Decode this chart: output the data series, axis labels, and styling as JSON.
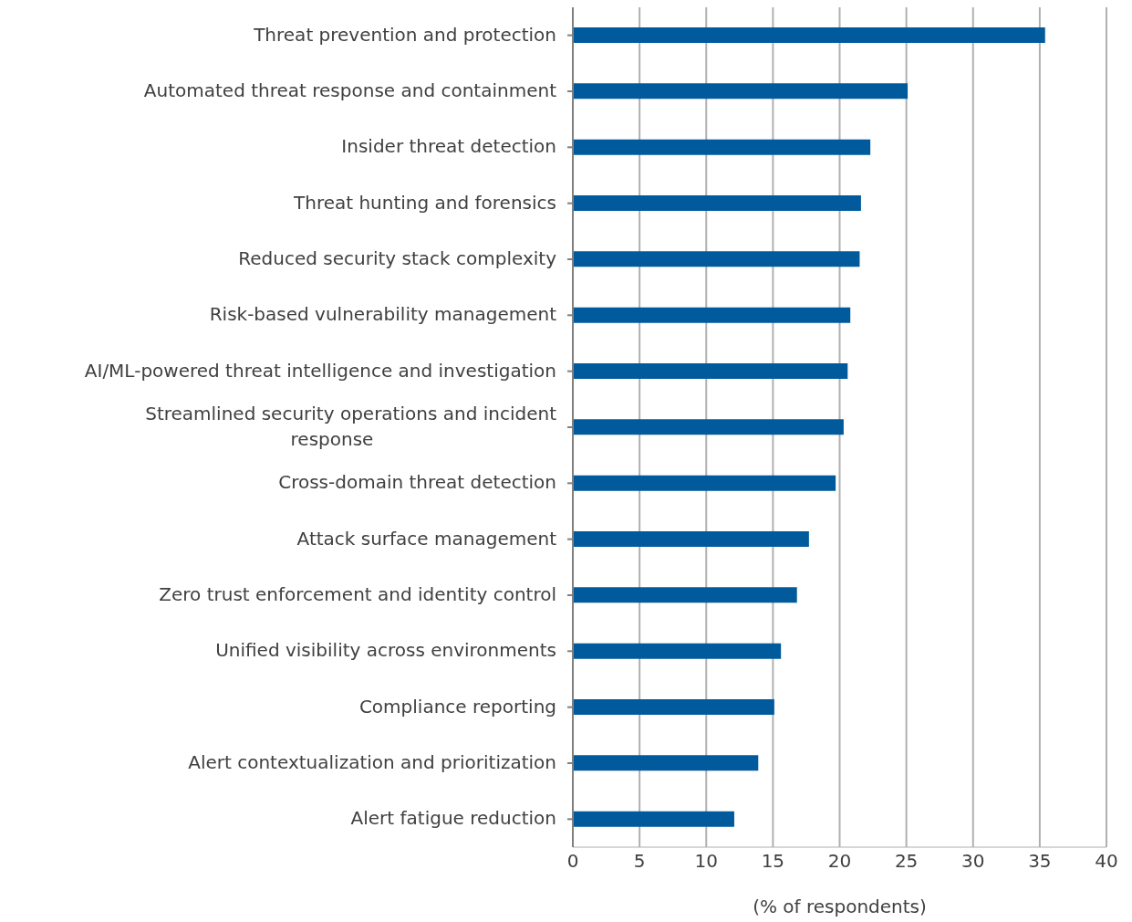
{
  "chart_data": {
    "type": "bar",
    "orientation": "horizontal",
    "xlabel": "(% of respondents)",
    "categories": [
      "Threat prevention and protection",
      "Automated threat response and containment",
      "Insider threat detection",
      "Threat hunting and forensics",
      "Reduced security stack complexity",
      "Risk-based vulnerability management",
      "AI/ML-powered threat intelligence and investigation",
      "Streamlined security operations and incident response",
      "Cross-domain threat detection",
      "Attack surface management",
      "Zero trust enforcement and identity control",
      "Unified visibility across environments",
      "Compliance reporting",
      "Alert contextualization and prioritization",
      "Alert fatigue reduction"
    ],
    "values": [
      35.4,
      25.1,
      22.3,
      21.6,
      21.5,
      20.8,
      20.6,
      20.3,
      19.7,
      17.7,
      16.8,
      15.6,
      15.1,
      13.9,
      12.1
    ],
    "color": "#005a9c",
    "xlim": [
      0,
      40
    ],
    "xticks": [
      0,
      5,
      10,
      15,
      20,
      25,
      30,
      35,
      40
    ],
    "grid": "x",
    "legend": false
  }
}
